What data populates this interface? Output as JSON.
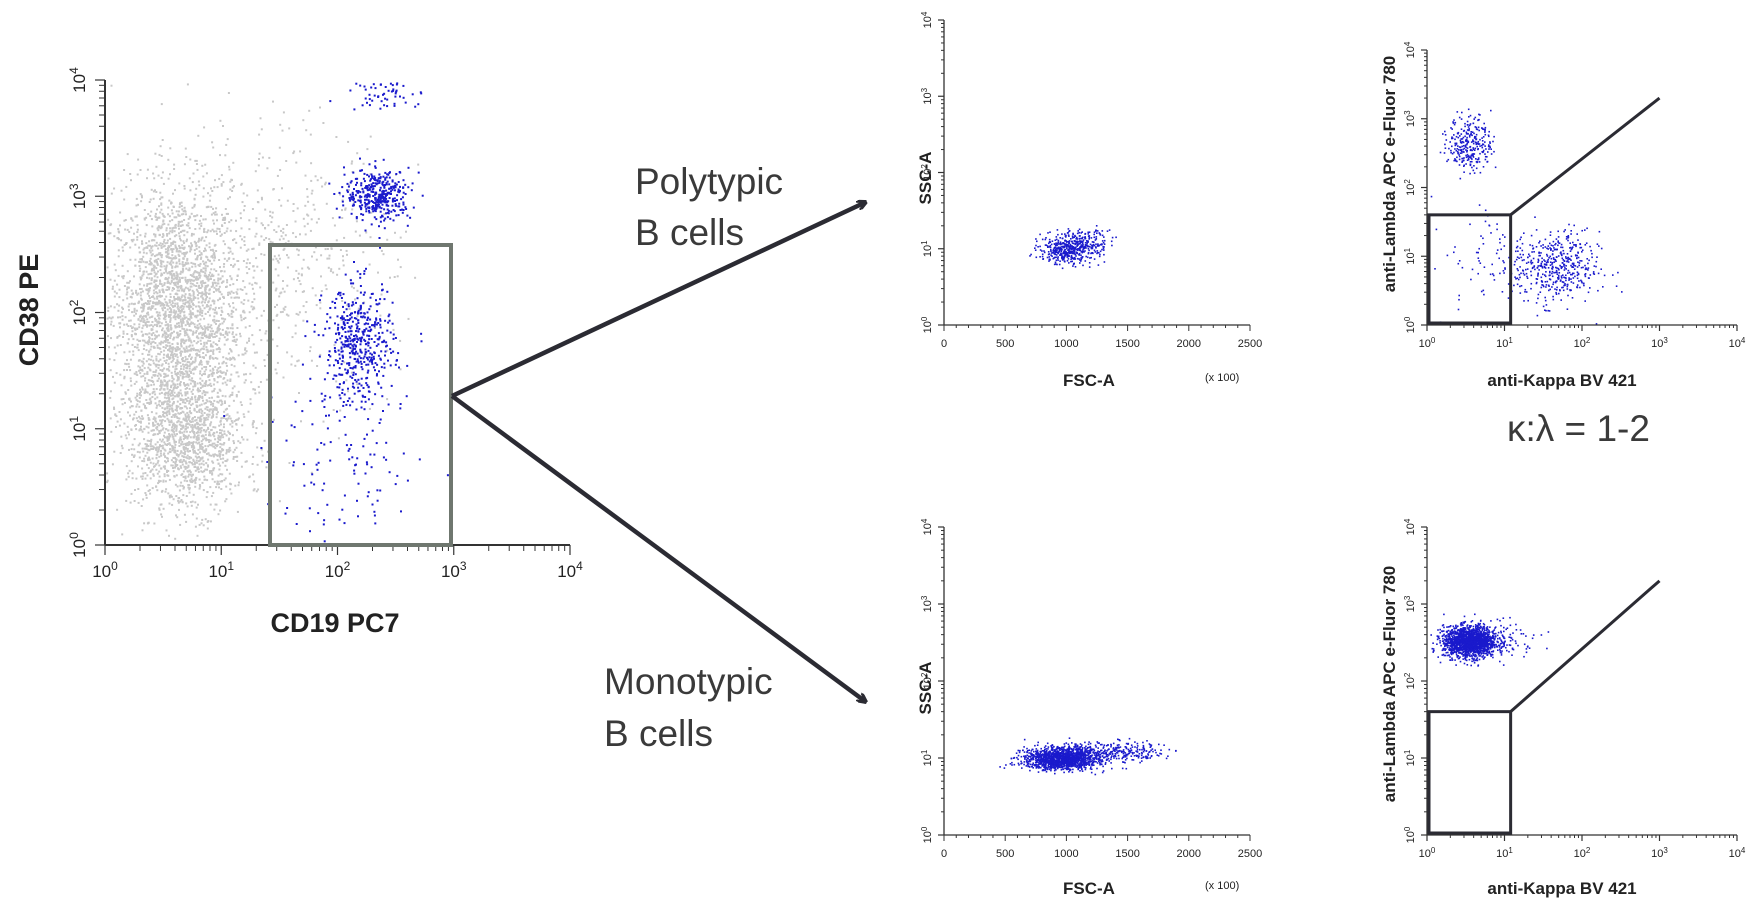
{
  "colors": {
    "event_gray": "#c8c8c8",
    "event_blue": "#1a1acc",
    "gate_gray": "#6f776f",
    "gate_dark": "#2b2b33",
    "arrow": "#2b2b33"
  },
  "annotations": {
    "polytypic": [
      "Polytypic",
      "B cells"
    ],
    "monotypic": [
      "Monotypic",
      "B cells"
    ],
    "ratio": "κ:λ = 1-2"
  },
  "chart_data": [
    {
      "id": "cd19-cd38",
      "type": "scatter",
      "xlabel": "CD19 PC7",
      "ylabel": "CD38 PE",
      "xscale": "log",
      "yscale": "log",
      "xlim": [
        1,
        10000
      ],
      "ylim": [
        1,
        10000
      ],
      "xticks": [
        "10^0",
        "10^1",
        "10^2",
        "10^3",
        "10^4"
      ],
      "yticks": [
        "10^0",
        "10^1",
        "10^2",
        "10^3",
        "10^4"
      ],
      "gate": {
        "x": [
          30,
          1000
        ],
        "y": [
          1,
          400
        ],
        "color": "gray"
      },
      "series": [
        {
          "color": "gray",
          "clusters": [
            {
              "cx": 4,
              "cy": 100,
              "sx": 0.28,
              "sy": 0.55,
              "n": 2600
            },
            {
              "cx": 5,
              "cy": 8,
              "sx": 0.25,
              "sy": 0.3,
              "n": 1200
            },
            {
              "cx": 30,
              "cy": 300,
              "sx": 0.5,
              "sy": 0.6,
              "n": 500
            }
          ]
        },
        {
          "color": "blue",
          "clusters": [
            {
              "cx": 220,
              "cy": 1050,
              "sx": 0.14,
              "sy": 0.11,
              "n": 380
            },
            {
              "cx": 150,
              "cy": 55,
              "sx": 0.15,
              "sy": 0.25,
              "n": 460
            },
            {
              "cx": 120,
              "cy": 5,
              "sx": 0.35,
              "sy": 0.35,
              "n": 120
            },
            {
              "cx": 250,
              "cy": 8000,
              "sx": 0.15,
              "sy": 0.08,
              "n": 60
            }
          ]
        }
      ]
    },
    {
      "id": "poly-fsc-ssc",
      "type": "scatter",
      "xlabel": "FSC-A",
      "ylabel": "SSC-A",
      "xunit": "(x 100)",
      "xlim": [
        0,
        2500
      ],
      "xticks": [
        "0",
        "500",
        "1000",
        "1500",
        "2000",
        "2500"
      ],
      "yscale": "log",
      "ylim": [
        1,
        10000
      ],
      "yticks": [
        "10^0",
        "10^1",
        "10^2",
        "10^3",
        "10^4"
      ],
      "series": [
        {
          "color": "blue",
          "clusters": [
            {
              "cx": 1000,
              "cy": 10,
              "sx": 110,
              "sy": 0.09,
              "n": 560,
              "tail": [
                1300,
                18,
                260
              ]
            }
          ]
        }
      ]
    },
    {
      "id": "poly-kappa-lambda",
      "type": "scatter",
      "xlabel": "anti-Kappa BV 421",
      "ylabel": "anti-Lambda APC e-Fluor 780",
      "xscale": "log",
      "yscale": "log",
      "xlim": [
        1,
        10000
      ],
      "ylim": [
        1,
        10000
      ],
      "xticks": [
        "10^0",
        "10^1",
        "10^2",
        "10^3",
        "10^4"
      ],
      "yticks": [
        "10^0",
        "10^1",
        "10^2",
        "10^3",
        "10^4"
      ],
      "gates": {
        "box": {
          "x": [
            1,
            12
          ],
          "y": [
            1,
            40
          ]
        },
        "line": [
          [
            12,
            40
          ],
          [
            1000,
            2000
          ]
        ]
      },
      "series": [
        {
          "color": "blue",
          "clusters": [
            {
              "cx": 3.5,
              "cy": 450,
              "sx": 0.14,
              "sy": 0.2,
              "n": 290
            },
            {
              "cx": 45,
              "cy": 7,
              "sx": 0.28,
              "sy": 0.26,
              "n": 460
            },
            {
              "cx": 8,
              "cy": 10,
              "sx": 0.45,
              "sy": 0.45,
              "n": 80
            }
          ]
        }
      ]
    },
    {
      "id": "mono-fsc-ssc",
      "type": "scatter",
      "xlabel": "FSC-A",
      "ylabel": "SSC-A",
      "xunit": "(x 100)",
      "xlim": [
        0,
        2500
      ],
      "xticks": [
        "0",
        "500",
        "1000",
        "1500",
        "2000",
        "2500"
      ],
      "yscale": "log",
      "ylim": [
        1,
        10000
      ],
      "yticks": [
        "10^0",
        "10^1",
        "10^2",
        "10^3",
        "10^4"
      ],
      "series": [
        {
          "color": "blue",
          "clusters": [
            {
              "cx": 950,
              "cy": 10,
              "sx": 150,
              "sy": 0.07,
              "n": 1800,
              "tail": [
                1700,
                15,
                500
              ]
            }
          ]
        }
      ]
    },
    {
      "id": "mono-kappa-lambda",
      "type": "scatter",
      "xlabel": "anti-Kappa BV 421",
      "ylabel": "anti-Lambda APC e-Fluor 780",
      "xscale": "log",
      "yscale": "log",
      "xlim": [
        1,
        10000
      ],
      "ylim": [
        1,
        10000
      ],
      "xticks": [
        "10^0",
        "10^1",
        "10^2",
        "10^3",
        "10^4"
      ],
      "yticks": [
        "10^0",
        "10^1",
        "10^2",
        "10^3",
        "10^4"
      ],
      "gates": {
        "box": {
          "x": [
            1,
            12
          ],
          "y": [
            1,
            40
          ]
        },
        "line": [
          [
            12,
            40
          ],
          [
            1000,
            2000
          ]
        ]
      },
      "series": [
        {
          "color": "blue",
          "clusters": [
            {
              "cx": 3.5,
              "cy": 330,
              "sx": 0.17,
              "sy": 0.1,
              "n": 1700
            },
            {
              "cx": 12,
              "cy": 400,
              "sx": 0.2,
              "sy": 0.12,
              "n": 60
            }
          ]
        }
      ]
    }
  ]
}
